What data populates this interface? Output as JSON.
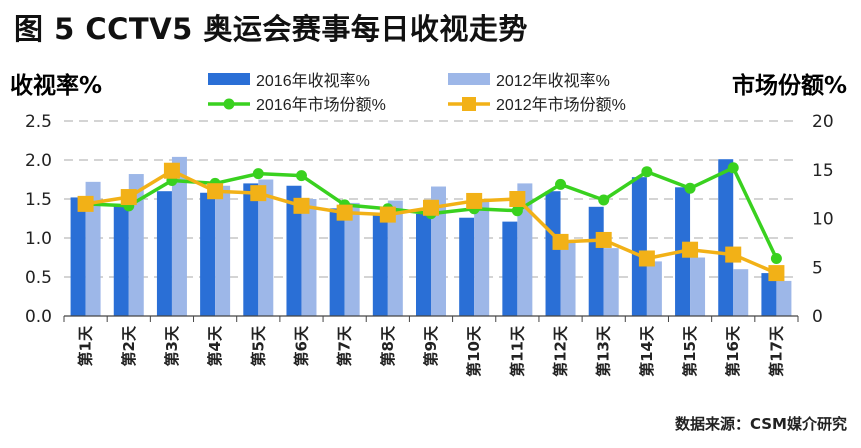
{
  "title": "图 5 CCTV5 奥运会赛事每日收视走势",
  "source": "数据来源：CSM媒介研究",
  "colors": {
    "bar2016": "#2a6fd6",
    "bar2012": "#9db7e8",
    "line2016": "#39d11f",
    "line2012": "#f2b117",
    "axis_title": "#2a6fd6",
    "grid": "#aaaaaa"
  },
  "chart_data": {
    "type": "bar+line",
    "ylabel": "收视率%",
    "y2label": "市场份额%",
    "ylim": [
      0,
      2.5
    ],
    "y2lim": [
      0,
      20
    ],
    "yticks": [
      "0.0",
      "0.5",
      "1.0",
      "1.5",
      "2.0",
      "2.5"
    ],
    "y2ticks": [
      "0",
      "5",
      "10",
      "15",
      "20"
    ],
    "grid": true,
    "legend_position": "top",
    "categories": [
      "第1天",
      "第2天",
      "第3天",
      "第4天",
      "第5天",
      "第6天",
      "第7天",
      "第8天",
      "第9天",
      "第10天",
      "第11天",
      "第12天",
      "第13天",
      "第14天",
      "第15天",
      "第16天",
      "第17天"
    ],
    "series": [
      {
        "name": "2016年收视率%",
        "kind": "bar",
        "axis": "left",
        "values": [
          1.52,
          1.43,
          1.6,
          1.58,
          1.7,
          1.67,
          1.38,
          1.3,
          1.31,
          1.26,
          1.21,
          1.6,
          1.4,
          1.78,
          1.65,
          2.01,
          0.55
        ]
      },
      {
        "name": "2012年收视率%",
        "kind": "bar",
        "axis": "left",
        "values": [
          1.72,
          1.82,
          2.04,
          1.67,
          1.75,
          1.5,
          1.45,
          1.48,
          1.66,
          1.48,
          1.7,
          0.95,
          0.87,
          0.7,
          0.75,
          0.6,
          0.45
        ]
      },
      {
        "name": "2016年市场份额%",
        "kind": "line",
        "axis": "right",
        "values": [
          11.5,
          11.3,
          13.9,
          13.6,
          14.6,
          14.4,
          11.4,
          11.0,
          10.5,
          11.0,
          10.8,
          13.5,
          11.9,
          14.8,
          13.1,
          15.2,
          5.9
        ]
      },
      {
        "name": "2012年市场份额%",
        "kind": "line",
        "axis": "right",
        "values": [
          11.5,
          12.2,
          14.9,
          12.8,
          12.6,
          11.3,
          10.6,
          10.4,
          11.1,
          11.8,
          12.0,
          7.6,
          7.8,
          5.9,
          6.8,
          6.3,
          4.4
        ]
      }
    ]
  }
}
